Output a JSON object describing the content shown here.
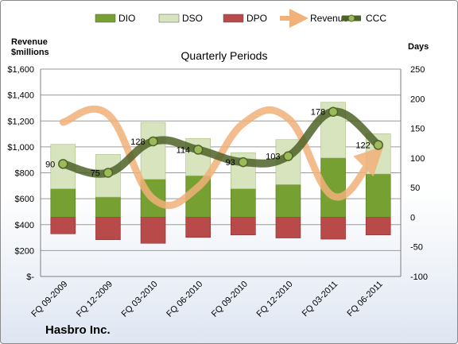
{
  "chart_data": {
    "type": "bar",
    "title": "Quarterly Periods",
    "company": "Hasbro Inc.",
    "left_axis_label": [
      "Revenue",
      "$millions"
    ],
    "right_axis_label": "Days",
    "left_ylim": [
      0,
      1600
    ],
    "left_ticks": [
      0,
      200,
      400,
      600,
      800,
      1000,
      1200,
      1400,
      1600
    ],
    "left_tick_labels": [
      "$-",
      "$200",
      "$400",
      "$600",
      "$800",
      "$1,000",
      "$1,200",
      "$1,400",
      "$1,600"
    ],
    "right_ylim": [
      -100,
      250
    ],
    "right_ticks": [
      -100,
      -50,
      0,
      50,
      100,
      150,
      200,
      250
    ],
    "right_tick_labels": [
      "-100",
      "-50",
      "0",
      "50",
      "100",
      "150",
      "200",
      "250"
    ],
    "grid": "horizontal",
    "legend_position": "top",
    "categories": [
      "FQ 09-2009",
      "FQ 12-2009",
      "FQ 03-2010",
      "FQ 06-2010",
      "FQ 09-2010",
      "FQ 12-2010",
      "FQ 03-2011",
      "FQ 06-2011"
    ],
    "series": [
      {
        "name": "DIO",
        "axis": "right",
        "kind": "stacked-bar",
        "color": "#77a033",
        "values": [
          48,
          34,
          64,
          70,
          48,
          55,
          100,
          73
        ]
      },
      {
        "name": "DSO",
        "axis": "right",
        "kind": "stacked-bar",
        "color": "#d7e4bd",
        "values": [
          75,
          72,
          96,
          63,
          61,
          76,
          94,
          68
        ]
      },
      {
        "name": "DPO",
        "axis": "right",
        "kind": "negative-bar",
        "color": "#b84a4a",
        "values": [
          -28,
          -38,
          -44,
          -34,
          -30,
          -35,
          -37,
          -30
        ]
      },
      {
        "name": "Revenue",
        "axis": "left",
        "kind": "line",
        "color": "#f2b179",
        "values": [
          1190,
          1250,
          600,
          690,
          1180,
          1220,
          620,
          940
        ]
      },
      {
        "name": "CCC",
        "axis": "right",
        "kind": "line",
        "color": "#4f6228",
        "values": [
          90,
          75,
          128,
          114,
          93,
          103,
          178,
          122
        ]
      }
    ],
    "ccc_labels": [
      "90",
      "75",
      "128",
      "114",
      "93",
      "103",
      "178",
      "122"
    ]
  }
}
